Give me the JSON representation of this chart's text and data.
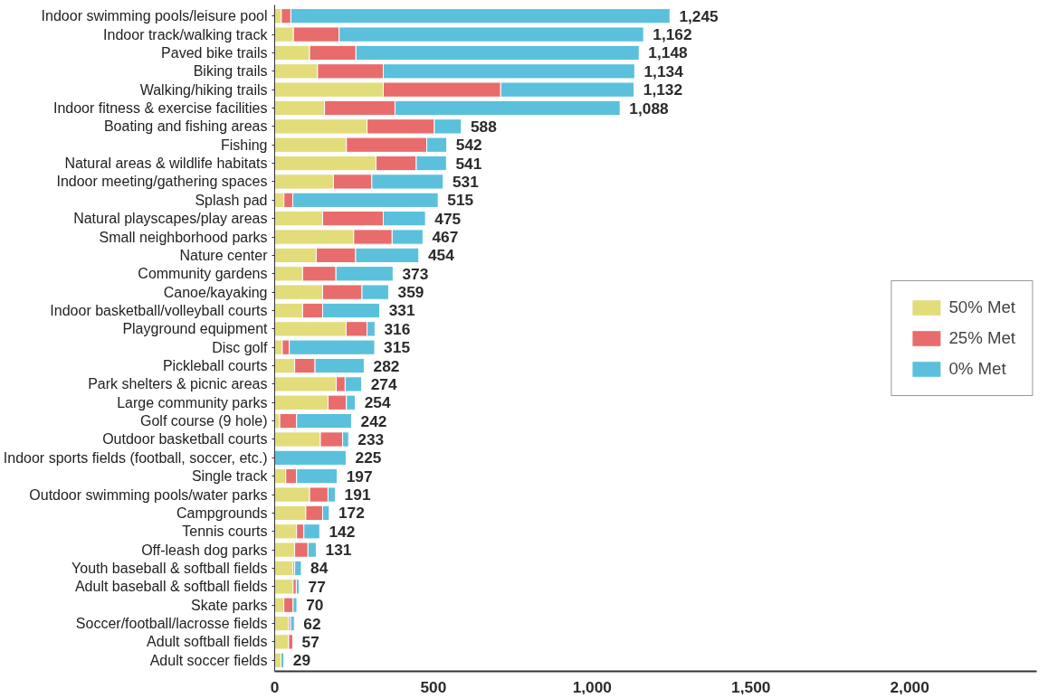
{
  "chart_data": {
    "type": "bar",
    "orientation": "horizontal",
    "stacked": true,
    "categories": [
      "Indoor swimming pools/leisure pool",
      "Indoor track/walking track",
      "Paved bike trails",
      "Biking trails",
      "Walking/hiking trails",
      "Indoor fitness & exercise facilities",
      "Boating and fishing areas",
      "Fishing",
      "Natural areas & wildlife habitats",
      "Indoor meeting/gathering spaces",
      "Splash pad",
      "Natural playscapes/play areas",
      "Small neighborhood parks",
      "Nature center",
      "Community gardens",
      "Canoe/kayaking",
      "Indoor basketball/volleyball courts",
      "Playground equipment",
      "Disc golf",
      "Pickleball courts",
      "Park shelters & picnic areas",
      "Large community parks",
      "Golf course (9 hole)",
      "Outdoor basketball courts",
      "Indoor sports fields (football, soccer, etc.)",
      "Single track",
      "Outdoor swimming pools/water parks",
      "Campgrounds",
      "Tennis courts",
      "Off-leash dog parks",
      "Youth baseball & softball fields",
      "Adult baseball & softball fields",
      "Skate parks",
      "Soccer/football/lacrosse fields",
      "Adult softball fields",
      "Adult soccer fields"
    ],
    "series": [
      {
        "name": "50% Met",
        "color": "#e2dc7a",
        "values": [
          21,
          59,
          110,
          135,
          342,
          157,
          291,
          226,
          319,
          185,
          29,
          151,
          249,
          131,
          88,
          151,
          88,
          225,
          24,
          63,
          194,
          168,
          16,
          144,
          0,
          35,
          110,
          98,
          69,
          63,
          58,
          58,
          29,
          44,
          44,
          20
        ]
      },
      {
        "name": "25% Met",
        "color": "#e86c6c",
        "values": [
          30,
          144,
          146,
          207,
          370,
          222,
          212,
          253,
          127,
          121,
          28,
          191,
          121,
          124,
          105,
          124,
          63,
          66,
          22,
          64,
          28,
          58,
          53,
          70,
          0,
          34,
          58,
          53,
          23,
          42,
          5,
          10,
          29,
          6,
          13,
          0
        ]
      },
      {
        "name": "0% Met",
        "color": "#5bc0dc",
        "values": [
          1194,
          959,
          892,
          792,
          420,
          709,
          85,
          63,
          95,
          225,
          458,
          133,
          97,
          199,
          180,
          84,
          180,
          25,
          269,
          155,
          52,
          28,
          173,
          19,
          225,
          128,
          23,
          21,
          50,
          26,
          21,
          9,
          12,
          12,
          0,
          9
        ]
      }
    ],
    "totals": [
      "1,245",
      "1,162",
      "1,148",
      "1,134",
      "1,132",
      "1,088",
      "588",
      "542",
      "541",
      "531",
      "515",
      "475",
      "467",
      "454",
      "373",
      "359",
      "331",
      "316",
      "315",
      "282",
      "274",
      "254",
      "242",
      "233",
      "225",
      "197",
      "191",
      "172",
      "142",
      "131",
      "84",
      "77",
      "70",
      "62",
      "57",
      "29"
    ],
    "xlim": [
      0,
      2400
    ],
    "xticks": [
      0,
      500,
      {
        "value": 1000,
        "label": "1,000"
      },
      {
        "value": 1500,
        "label": "1,500"
      },
      {
        "value": 2000,
        "label": "2,000"
      }
    ],
    "grid": false,
    "legend": "right"
  }
}
